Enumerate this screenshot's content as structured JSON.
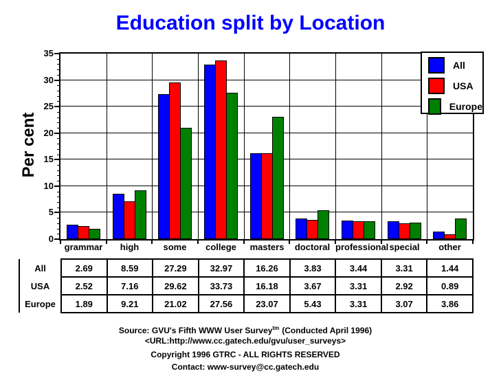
{
  "title": "Education split by Location",
  "ylabel": "Per cent",
  "colors": {
    "all": "#0000FF",
    "usa": "#FF0000",
    "europe": "#008000",
    "title": "#0000FF",
    "grid": "#000000",
    "background": "#FFFFFF"
  },
  "chart_data": {
    "type": "bar",
    "title": "Education split by Location",
    "xlabel": "",
    "ylabel": "Per cent",
    "ylim": [
      0,
      35
    ],
    "ytick_step": 5,
    "ytick_minor_step": 1,
    "grid": true,
    "legend_position": "top-right",
    "categories": [
      "grammar",
      "high",
      "some",
      "college",
      "masters",
      "doctoral",
      "professional",
      "special",
      "other"
    ],
    "series": [
      {
        "name": "All",
        "color": "#0000FF",
        "values": [
          2.69,
          8.59,
          27.29,
          32.97,
          16.26,
          3.83,
          3.44,
          3.31,
          1.44
        ]
      },
      {
        "name": "USA",
        "color": "#FF0000",
        "values": [
          2.52,
          7.16,
          29.62,
          33.73,
          16.18,
          3.67,
          3.31,
          2.92,
          0.89
        ]
      },
      {
        "name": "Europe",
        "color": "#008000",
        "values": [
          1.89,
          9.21,
          21.02,
          27.56,
          23.07,
          5.43,
          3.31,
          3.07,
          3.86
        ]
      }
    ]
  },
  "table": {
    "row_labels": [
      "All",
      "USA",
      "Europe"
    ],
    "rows": [
      [
        "2.69",
        "8.59",
        "27.29",
        "32.97",
        "16.26",
        "3.83",
        "3.44",
        "3.31",
        "1.44"
      ],
      [
        "2.52",
        "7.16",
        "29.62",
        "33.73",
        "16.18",
        "3.67",
        "3.31",
        "2.92",
        "0.89"
      ],
      [
        "1.89",
        "9.21",
        "21.02",
        "27.56",
        "23.07",
        "5.43",
        "3.31",
        "3.07",
        "3.86"
      ]
    ]
  },
  "source": {
    "line1_pre": "Source: GVU's Fifth WWW User Survey",
    "line1_sup": "tm",
    "line1_post": "(Conducted April 1996)",
    "line2": "<URL:http://www.cc.gatech.edu/gvu/user_surveys>",
    "line3": "Copyright 1996 GTRC -  ALL RIGHTS RESERVED",
    "line4": "Contact: www-survey@cc.gatech.edu"
  }
}
